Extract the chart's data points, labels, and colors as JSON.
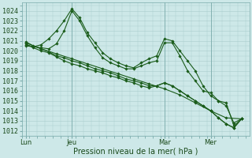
{
  "background_color": "#cde8e8",
  "plot_bg_color": "#cde8e8",
  "grid_color": "#aacccc",
  "line_color": "#1a5c1a",
  "marker_color": "#1a5c1a",
  "ylabel": "Pression niveau de la mer( hPa )",
  "ylim": [
    1012,
    1024.5
  ],
  "yticks": [
    1012,
    1013,
    1014,
    1015,
    1016,
    1017,
    1018,
    1019,
    1020,
    1021,
    1022,
    1023,
    1024
  ],
  "xtick_labels": [
    "Lun",
    "Jeu",
    "Mar",
    "Mer"
  ],
  "tick_fontsize": 6,
  "xlabel_fontsize": 7,
  "series1_x": [
    0,
    8,
    16,
    24,
    32,
    40,
    48,
    56,
    64,
    72,
    80,
    88,
    96,
    104,
    112
  ],
  "series1_y": [
    1020.8,
    1020.2,
    1019.7,
    1019.2,
    1018.7,
    1018.2,
    1017.7,
    1017.2,
    1016.7,
    1016.2,
    1015.6,
    1014.8,
    1014.0,
    1013.3,
    1013.2
  ],
  "series2_x": [
    0,
    4,
    8,
    12,
    16,
    20,
    24,
    28,
    32,
    36,
    40,
    44,
    48,
    52,
    56,
    60,
    64,
    68,
    72,
    76,
    80,
    84,
    88,
    92,
    96,
    100,
    104,
    108,
    112
  ],
  "series2_y": [
    1020.5,
    1020.4,
    1020.6,
    1021.2,
    1022.0,
    1023.0,
    1024.2,
    1023.3,
    1021.8,
    1020.8,
    1019.8,
    1019.2,
    1018.8,
    1018.5,
    1018.3,
    1018.8,
    1019.2,
    1019.5,
    1021.2,
    1021.0,
    1020.0,
    1019.0,
    1018.0,
    1016.5,
    1015.5,
    1015.0,
    1014.5,
    1012.8,
    1013.2
  ],
  "series3_x": [
    0,
    4,
    8,
    12,
    16,
    20,
    24,
    28,
    32,
    36,
    40,
    44,
    48,
    52,
    56,
    60,
    64,
    68,
    72,
    76,
    80,
    84,
    88,
    92,
    96,
    100,
    104,
    108,
    112
  ],
  "series3_y": [
    1020.6,
    1020.4,
    1020.3,
    1020.2,
    1020.7,
    1022.0,
    1024.0,
    1023.0,
    1021.5,
    1020.3,
    1019.3,
    1018.8,
    1018.5,
    1018.2,
    1018.2,
    1018.5,
    1018.8,
    1019.0,
    1020.8,
    1020.8,
    1019.5,
    1018.0,
    1017.0,
    1016.0,
    1015.8,
    1015.0,
    1014.8,
    1012.5,
    1013.2
  ],
  "series4_x": [
    0,
    4,
    8,
    12,
    16,
    20,
    24,
    28,
    32,
    36,
    40,
    44,
    48,
    52,
    56,
    60,
    64,
    68,
    72,
    76,
    80,
    84,
    88,
    92,
    96,
    100,
    104,
    108,
    112
  ],
  "series4_y": [
    1020.7,
    1020.3,
    1020.0,
    1019.8,
    1019.4,
    1019.0,
    1018.7,
    1018.5,
    1018.2,
    1018.0,
    1017.8,
    1017.5,
    1017.3,
    1017.0,
    1016.8,
    1016.5,
    1016.3,
    1016.5,
    1016.8,
    1016.5,
    1016.0,
    1015.5,
    1015.0,
    1014.5,
    1014.0,
    1013.3,
    1012.7,
    1012.3,
    1013.2
  ],
  "series5_x": [
    0,
    4,
    8,
    12,
    16,
    20,
    24,
    28,
    32,
    36,
    40,
    44,
    48,
    52,
    56,
    60,
    64,
    68,
    72,
    76,
    80,
    84,
    88,
    92,
    96,
    100,
    104,
    108,
    112
  ],
  "series5_y": [
    1020.9,
    1020.5,
    1020.2,
    1019.9,
    1019.5,
    1019.3,
    1019.0,
    1018.8,
    1018.5,
    1018.2,
    1018.0,
    1017.8,
    1017.5,
    1017.2,
    1017.0,
    1016.8,
    1016.5,
    1016.5,
    1016.8,
    1016.5,
    1016.0,
    1015.5,
    1015.0,
    1014.5,
    1014.0,
    1013.3,
    1012.7,
    1012.3,
    1013.2
  ]
}
